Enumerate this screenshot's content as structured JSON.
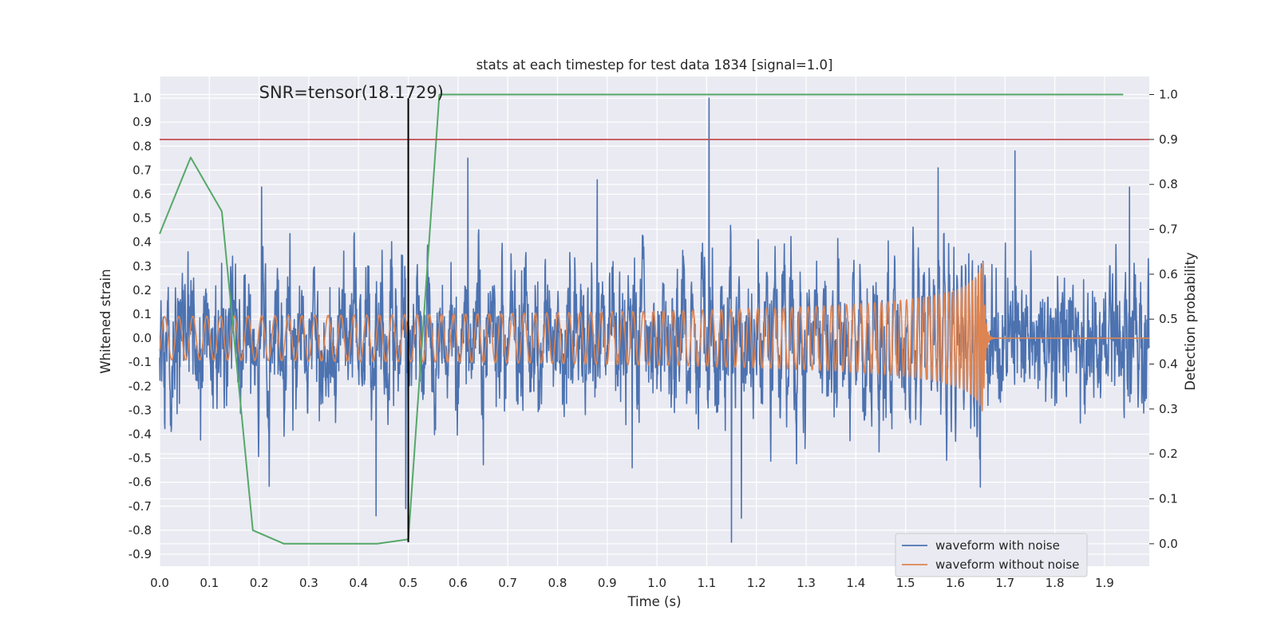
{
  "chart_data": {
    "type": "line",
    "title": "stats at each timestep for test data 1834 [signal=1.0]",
    "xlabel": "Time (s)",
    "ylabel_left": "Whitened strain",
    "ylabel_right": "Detection probability",
    "xlim": [
      0.0,
      1.99
    ],
    "ylim_left": [
      -0.95,
      1.09
    ],
    "ylim_right": [
      -0.05,
      1.04
    ],
    "x_ticks": [
      "0.0",
      "0.1",
      "0.2",
      "0.3",
      "0.4",
      "0.5",
      "0.6",
      "0.7",
      "0.8",
      "0.9",
      "1.0",
      "1.1",
      "1.2",
      "1.3",
      "1.4",
      "1.5",
      "1.6",
      "1.7",
      "1.8",
      "1.9"
    ],
    "y_left_ticks": [
      "-0.9",
      "-0.8",
      "-0.7",
      "-0.6",
      "-0.5",
      "-0.4",
      "-0.3",
      "-0.2",
      "-0.1",
      "0.0",
      "0.1",
      "0.2",
      "0.3",
      "0.4",
      "0.5",
      "0.6",
      "0.7",
      "0.8",
      "0.9",
      "1.0"
    ],
    "y_right_ticks": [
      "0.0",
      "0.1",
      "0.2",
      "0.3",
      "0.4",
      "0.5",
      "0.6",
      "0.7",
      "0.8",
      "0.9",
      "1.0"
    ],
    "grid": true,
    "legend_position": "lower right",
    "annotation": {
      "text": "SNR=tensor(18.1729)",
      "x": 0.2,
      "y": 1.0
    },
    "threshold_line": {
      "axis": "right",
      "value": 0.9,
      "color": "#c44e52"
    },
    "vertical_marker": {
      "x": 0.5,
      "y_from": -0.85,
      "y_to": 1.0,
      "color": "#000000"
    },
    "series": [
      {
        "name": "waveform with noise",
        "color": "#4c72b0",
        "axis": "left",
        "kind": "noisy-strain",
        "noise_sigma": 0.22,
        "notable_points": [
          {
            "x": 1.105,
            "y": 1.0
          },
          {
            "x": 1.15,
            "y": -0.85
          },
          {
            "x": 0.435,
            "y": -0.74
          },
          {
            "x": 1.17,
            "y": -0.75
          },
          {
            "x": 1.72,
            "y": 0.78
          },
          {
            "x": 0.205,
            "y": 0.63
          },
          {
            "x": 0.495,
            "y": -0.71
          },
          {
            "x": 0.62,
            "y": 0.75
          },
          {
            "x": 1.95,
            "y": 0.63
          },
          {
            "x": 1.65,
            "y": -0.62
          },
          {
            "x": 0.88,
            "y": 0.66
          },
          {
            "x": 1.565,
            "y": 0.71
          },
          {
            "x": 0.95,
            "y": -0.54
          }
        ]
      },
      {
        "name": "waveform without noise",
        "color": "#dd8452",
        "axis": "left",
        "kind": "chirp",
        "start_amplitude": 0.09,
        "peak_amplitude": 0.4,
        "start_frequency_hz": 35,
        "merger_time": 1.655,
        "ringdown_end": 1.67
      },
      {
        "name": "",
        "color": "#55a868",
        "axis": "right",
        "kind": "probability",
        "x": [
          0.0,
          0.0625,
          0.125,
          0.1875,
          0.25,
          0.3125,
          0.375,
          0.4375,
          0.5,
          0.5625,
          0.625,
          0.6875,
          0.75,
          0.8125,
          0.875,
          0.9375,
          1.0,
          1.0625,
          1.125,
          1.1875,
          1.25,
          1.3125,
          1.375,
          1.4375,
          1.5,
          1.5625,
          1.625,
          1.6875,
          1.75,
          1.8125,
          1.875,
          1.9375
        ],
        "y": [
          0.69,
          0.86,
          0.74,
          0.03,
          0.0,
          0.0,
          0.0,
          0.0,
          0.01,
          1.0,
          1.0,
          1.0,
          1.0,
          1.0,
          1.0,
          1.0,
          1.0,
          1.0,
          1.0,
          1.0,
          1.0,
          1.0,
          1.0,
          1.0,
          1.0,
          1.0,
          1.0,
          1.0,
          1.0,
          1.0,
          1.0,
          1.0
        ]
      }
    ]
  },
  "colors": {
    "plot_background": "#eaeaf2",
    "grid": "#ffffff",
    "text": "#262626",
    "legend_background": "#eaeaf2",
    "legend_border": "#cccccc"
  }
}
